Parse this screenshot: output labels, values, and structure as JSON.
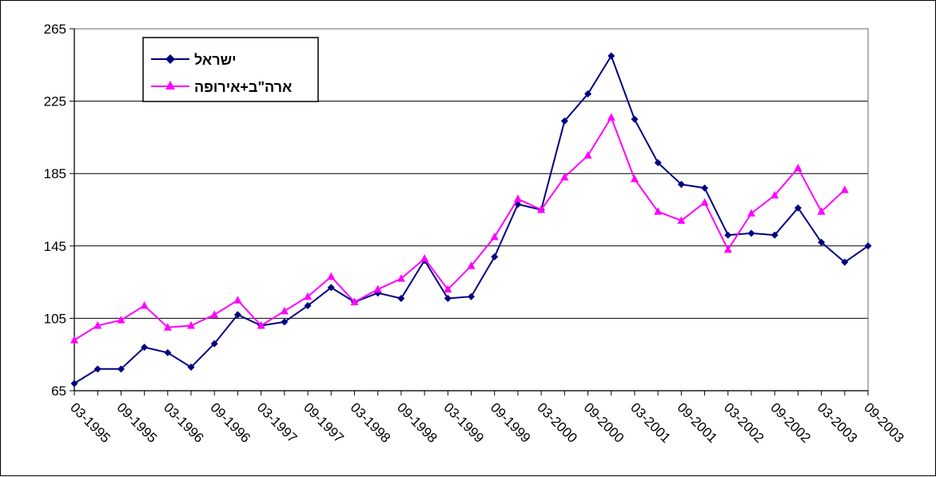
{
  "chart_data": {
    "type": "line",
    "title": "",
    "xlabel": "",
    "ylabel": "",
    "ylim": [
      65,
      265
    ],
    "yticks": [
      "65",
      "105",
      "145",
      "185",
      "225",
      "265"
    ],
    "xticks": [
      "03-1995",
      "09-1995",
      "03-1996",
      "09-1996",
      "03-1997",
      "09-1997",
      "03-1998",
      "09-1998",
      "03-1999",
      "09-1999",
      "03-2000",
      "09-2000",
      "03-2001",
      "09-2001",
      "03-2002",
      "09-2002",
      "03-2003",
      "09-2003"
    ],
    "x": [
      "03-1995",
      "06-1995",
      "09-1995",
      "12-1995",
      "03-1996",
      "06-1996",
      "09-1996",
      "12-1996",
      "03-1997",
      "06-1997",
      "09-1997",
      "12-1997",
      "03-1998",
      "06-1998",
      "09-1998",
      "12-1998",
      "03-1999",
      "06-1999",
      "09-1999",
      "12-1999",
      "03-2000",
      "06-2000",
      "09-2000",
      "12-2000",
      "03-2001",
      "06-2001",
      "09-2001",
      "12-2001",
      "03-2002",
      "06-2002",
      "09-2002",
      "12-2002",
      "03-2003",
      "06-2003",
      "09-2003"
    ],
    "grid": true,
    "legend_position": "top-left",
    "series": [
      {
        "name": "ישראל",
        "color": "#000080",
        "marker": "diamond",
        "values": [
          69,
          77,
          77,
          89,
          86,
          78,
          91,
          107,
          101,
          103,
          112,
          122,
          114,
          119,
          116,
          137,
          116,
          117,
          139,
          168,
          165,
          214,
          229,
          250,
          215,
          191,
          179,
          177,
          151,
          152,
          151,
          166,
          147,
          136,
          145
        ]
      },
      {
        "name": "ארה\"ב+אירופה",
        "color": "#FF00FF",
        "marker": "triangle",
        "values": [
          93,
          101,
          104,
          112,
          100,
          101,
          107,
          115,
          101,
          109,
          117,
          128,
          114,
          121,
          127,
          138,
          121,
          134,
          150,
          171,
          165,
          183,
          195,
          216,
          182,
          164,
          159,
          169,
          143,
          163,
          173,
          188,
          164,
          176,
          null
        ]
      }
    ]
  }
}
